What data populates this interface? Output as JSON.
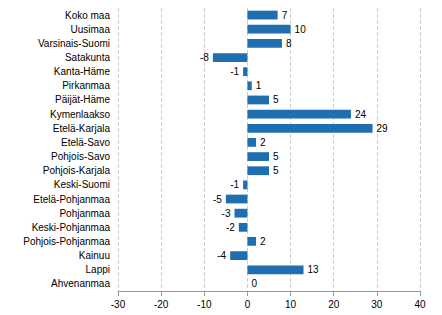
{
  "chart_data": {
    "type": "bar",
    "orientation": "horizontal",
    "categories": [
      "Koko maa",
      "Uusimaa",
      "Varsinais-Suomi",
      "Satakunta",
      "Kanta-Häme",
      "Pirkanmaa",
      "Päijät-Häme",
      "Kymenlaakso",
      "Etelä-Karjala",
      "Etelä-Savo",
      "Pohjois-Savo",
      "Pohjois-Karjala",
      "Keski-Suomi",
      "Etelä-Pohjanmaa",
      "Pohjanmaa",
      "Keski-Pohjanmaa",
      "Pohjois-Pohjanmaa",
      "Kainuu",
      "Lappi",
      "Ahvenanmaa"
    ],
    "values": [
      7,
      10,
      8,
      -8,
      -1,
      1,
      5,
      24,
      29,
      2,
      5,
      5,
      -1,
      -5,
      -3,
      -2,
      2,
      -4,
      13,
      0
    ],
    "color": "#1f6fb0",
    "xlim": [
      -30,
      40
    ],
    "xticks": [
      -30,
      -20,
      -10,
      0,
      10,
      20,
      30,
      40
    ],
    "grid": true,
    "data_labels": true
  }
}
